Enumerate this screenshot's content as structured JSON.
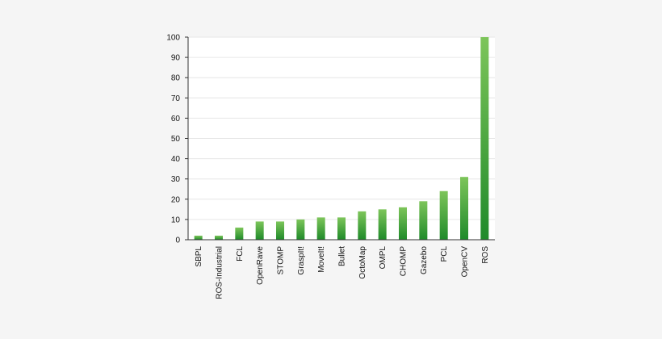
{
  "chart_data": {
    "type": "bar",
    "categories": [
      "SBPL",
      "ROS-Industrial",
      "FCL",
      "OpenRave",
      "STOMP",
      "GraspIt!",
      "MoveIt!",
      "Bullet",
      "OctoMap",
      "OMPL",
      "CHOMP",
      "Gazebo",
      "PCL",
      "OpenCV",
      "ROS"
    ],
    "values": [
      2,
      2,
      6,
      9,
      9,
      10,
      11,
      11,
      14,
      15,
      16,
      19,
      24,
      31,
      100
    ],
    "ylim": [
      0,
      100
    ],
    "yticks": [
      0,
      10,
      20,
      30,
      40,
      50,
      60,
      70,
      80,
      90,
      100
    ],
    "grid": true,
    "title": "",
    "xlabel": "",
    "ylabel": "",
    "colors": {
      "bar_top": "#7dc55a",
      "bar_bottom": "#1f8a2a",
      "axis": "#333333",
      "grid": "#e6e6e6",
      "plot_bg": "#ffffff"
    }
  }
}
